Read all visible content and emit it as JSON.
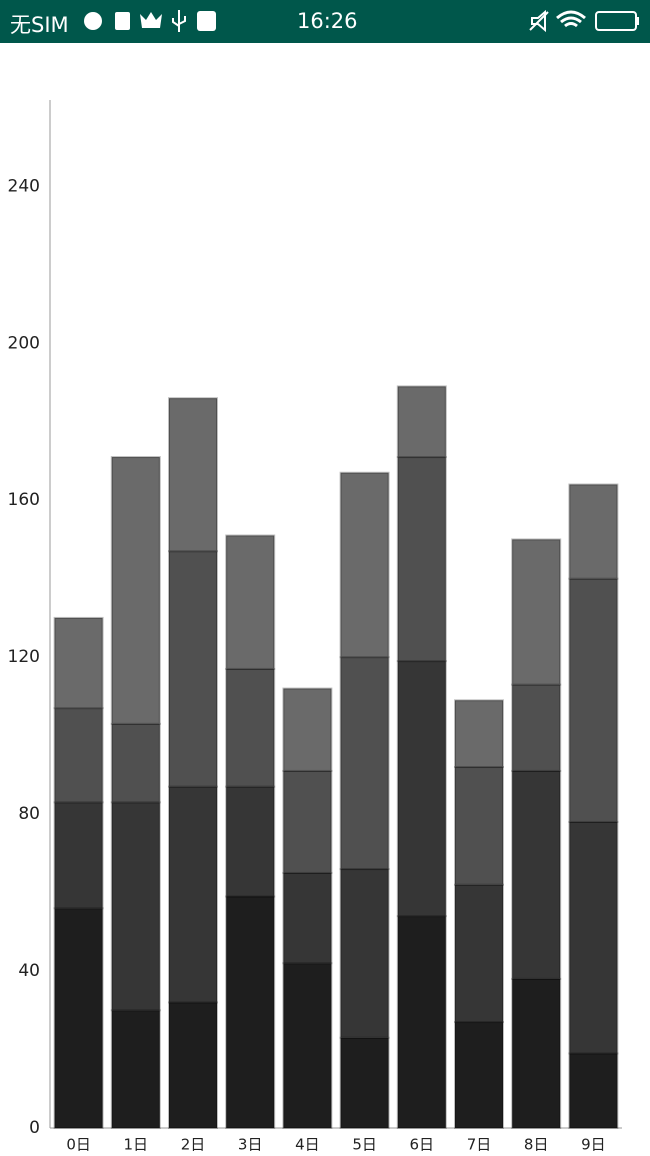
{
  "status_bar": {
    "carrier": "无SIM",
    "time": "16:26"
  },
  "chart_data": {
    "type": "stacked_bar",
    "categories": [
      "0日",
      "1日",
      "2日",
      "3日",
      "4日",
      "5日",
      "6日",
      "7日",
      "8日",
      "9日"
    ],
    "series": [
      {
        "color": "#1e1e1e",
        "values": [
          56,
          30,
          32,
          59,
          42,
          23,
          54,
          27,
          38,
          19
        ]
      },
      {
        "color": "#363636",
        "values": [
          27,
          53,
          55,
          28,
          23,
          43,
          65,
          35,
          53,
          59
        ]
      },
      {
        "color": "#505050",
        "values": [
          24,
          20,
          60,
          30,
          26,
          54,
          52,
          30,
          22,
          62
        ]
      },
      {
        "color": "#6a6a6a",
        "values": [
          23,
          68,
          39,
          34,
          21,
          47,
          18,
          17,
          37,
          24
        ]
      }
    ],
    "ylim": [
      0,
      262
    ],
    "yticks": [
      0,
      40,
      80,
      120,
      160,
      200,
      240
    ],
    "grid": false
  }
}
